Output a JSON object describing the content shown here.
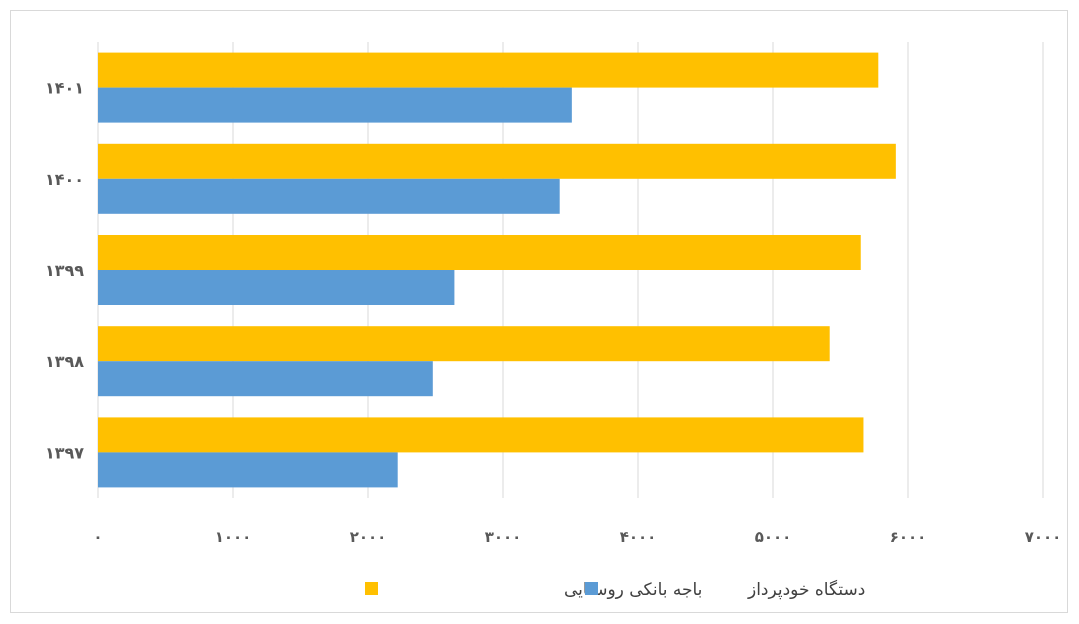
{
  "chart_data": {
    "type": "bar",
    "orientation": "horizontal",
    "title": "",
    "xlabel": "",
    "ylabel": "",
    "categories": [
      "۱۳۹۷",
      "۱۳۹۸",
      "۱۳۹۹",
      "۱۴۰۰",
      "۱۴۰۱"
    ],
    "series": [
      {
        "name": "دستگاه خودپرداز",
        "color": "#5b9bd5",
        "values": [
          2220,
          2480,
          2640,
          3420,
          3510
        ]
      },
      {
        "name": "باجه بانکی روستایی",
        "color": "#ffc000",
        "values": [
          5670,
          5420,
          5650,
          5910,
          5780
        ]
      }
    ],
    "xlim": [
      0,
      7000
    ],
    "x_ticks": [
      0,
      1000,
      2000,
      3000,
      4000,
      5000,
      6000,
      7000
    ],
    "x_tick_labels": [
      "۰",
      "۱۰۰۰",
      "۲۰۰۰",
      "۳۰۰۰",
      "۴۰۰۰",
      "۵۰۰۰",
      "۶۰۰۰",
      "۷۰۰۰"
    ],
    "grid": "vertical",
    "legend_position": "bottom"
  }
}
